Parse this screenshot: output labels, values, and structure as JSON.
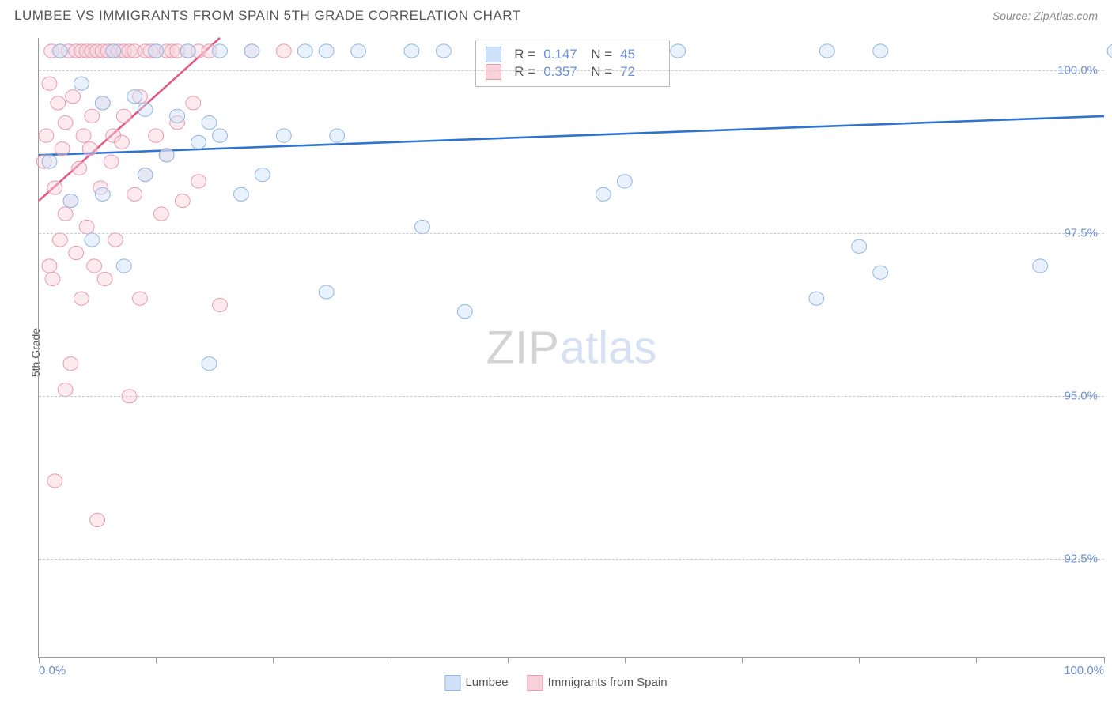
{
  "header": {
    "title": "LUMBEE VS IMMIGRANTS FROM SPAIN 5TH GRADE CORRELATION CHART",
    "source": "Source: ZipAtlas.com"
  },
  "ylabel": "5th Grade",
  "watermark": {
    "left": "ZIP",
    "right": "atlas"
  },
  "chart": {
    "type": "scatter",
    "xlim": [
      0,
      100
    ],
    "ylim": [
      91.0,
      100.5
    ],
    "background_color": "#ffffff",
    "grid_color": "#cccccc",
    "axis_color": "#999999",
    "ytick_step": 2.5,
    "yticks": [
      {
        "v": 92.5,
        "label": "92.5%"
      },
      {
        "v": 95.0,
        "label": "95.0%"
      },
      {
        "v": 97.5,
        "label": "97.5%"
      },
      {
        "v": 100.0,
        "label": "100.0%"
      }
    ],
    "xticks_pct": [
      0,
      11,
      22,
      33,
      44,
      55,
      66,
      77,
      88,
      100
    ],
    "xaxis_labels": [
      {
        "text": "0.0%",
        "pos": 0,
        "align": "left"
      },
      {
        "text": "100.0%",
        "pos": 100,
        "align": "right"
      }
    ],
    "marker_radius": 9,
    "marker_opacity": 0.45,
    "line_width": 2
  },
  "series": [
    {
      "id": "lumbee",
      "label": "Lumbee",
      "fill": "#cfe2f9",
      "stroke": "#8fb6e6",
      "line_color": "#2f73d1",
      "trend": {
        "x1": 0,
        "y1": 98.7,
        "x2": 100,
        "y2": 99.3
      },
      "stats": {
        "R": "0.147",
        "N": "45"
      },
      "points": [
        [
          1,
          98.6
        ],
        [
          2,
          100.3
        ],
        [
          3,
          98.0
        ],
        [
          4,
          99.8
        ],
        [
          5,
          97.4
        ],
        [
          6,
          99.5
        ],
        [
          6,
          98.1
        ],
        [
          7,
          100.3
        ],
        [
          8,
          97.0
        ],
        [
          9,
          99.6
        ],
        [
          10,
          98.4
        ],
        [
          11,
          100.3
        ],
        [
          12,
          98.7
        ],
        [
          13,
          99.3
        ],
        [
          14,
          100.3
        ],
        [
          15,
          98.9
        ],
        [
          16,
          95.5
        ],
        [
          17,
          99.0
        ],
        [
          17,
          100.3
        ],
        [
          19,
          98.1
        ],
        [
          20,
          100.3
        ],
        [
          21,
          98.4
        ],
        [
          23,
          99.0
        ],
        [
          25,
          100.3
        ],
        [
          27,
          96.6
        ],
        [
          28,
          99.0
        ],
        [
          27,
          100.3
        ],
        [
          30,
          100.3
        ],
        [
          36,
          97.6
        ],
        [
          38,
          100.3
        ],
        [
          40,
          96.3
        ],
        [
          42,
          100.3
        ],
        [
          53,
          98.1
        ],
        [
          55,
          98.3
        ],
        [
          60,
          100.3
        ],
        [
          73,
          96.5
        ],
        [
          74,
          100.3
        ],
        [
          77,
          97.3
        ],
        [
          79,
          100.3
        ],
        [
          79,
          96.9
        ],
        [
          94,
          97.0
        ],
        [
          101,
          100.3
        ],
        [
          35,
          100.3
        ],
        [
          16,
          99.2
        ],
        [
          10,
          99.4
        ]
      ]
    },
    {
      "id": "spain",
      "label": "Immigrants from Spain",
      "fill": "#f9d1db",
      "stroke": "#e99ab0",
      "line_color": "#e05a85",
      "trend": {
        "x1": 0,
        "y1": 98.0,
        "x2": 17,
        "y2": 100.5
      },
      "stats": {
        "R": "0.357",
        "N": "72"
      },
      "points": [
        [
          0.5,
          98.6
        ],
        [
          0.7,
          99.0
        ],
        [
          1.0,
          97.0
        ],
        [
          1.0,
          99.8
        ],
        [
          1.2,
          100.3
        ],
        [
          1.3,
          96.8
        ],
        [
          1.5,
          98.2
        ],
        [
          1.5,
          93.7
        ],
        [
          1.8,
          99.5
        ],
        [
          2.0,
          97.4
        ],
        [
          2.0,
          100.3
        ],
        [
          2.2,
          98.8
        ],
        [
          2.5,
          97.8
        ],
        [
          2.5,
          99.2
        ],
        [
          2.8,
          100.3
        ],
        [
          3.0,
          95.5
        ],
        [
          3.0,
          98.0
        ],
        [
          3.2,
          99.6
        ],
        [
          3.5,
          100.3
        ],
        [
          3.5,
          97.2
        ],
        [
          3.8,
          98.5
        ],
        [
          4.0,
          100.3
        ],
        [
          4.0,
          96.5
        ],
        [
          4.2,
          99.0
        ],
        [
          4.5,
          100.3
        ],
        [
          4.5,
          97.6
        ],
        [
          4.8,
          98.8
        ],
        [
          5.0,
          100.3
        ],
        [
          5.0,
          99.3
        ],
        [
          5.2,
          97.0
        ],
        [
          5.5,
          100.3
        ],
        [
          5.8,
          98.2
        ],
        [
          6.0,
          100.3
        ],
        [
          6.0,
          99.5
        ],
        [
          6.2,
          96.8
        ],
        [
          6.5,
          100.3
        ],
        [
          6.8,
          98.6
        ],
        [
          7.0,
          100.3
        ],
        [
          7.0,
          99.0
        ],
        [
          7.2,
          97.4
        ],
        [
          7.5,
          100.3
        ],
        [
          7.8,
          98.9
        ],
        [
          8.0,
          100.3
        ],
        [
          8.0,
          99.3
        ],
        [
          8.5,
          95.0
        ],
        [
          8.5,
          100.3
        ],
        [
          9.0,
          98.1
        ],
        [
          9.0,
          100.3
        ],
        [
          9.5,
          99.6
        ],
        [
          9.5,
          96.5
        ],
        [
          10.0,
          100.3
        ],
        [
          10.0,
          98.4
        ],
        [
          10.5,
          100.3
        ],
        [
          11.0,
          99.0
        ],
        [
          11.0,
          100.3
        ],
        [
          11.5,
          97.8
        ],
        [
          12.0,
          100.3
        ],
        [
          12.0,
          98.7
        ],
        [
          12.5,
          100.3
        ],
        [
          13.0,
          99.2
        ],
        [
          13.0,
          100.3
        ],
        [
          13.5,
          98.0
        ],
        [
          14.0,
          100.3
        ],
        [
          14.5,
          99.5
        ],
        [
          15.0,
          100.3
        ],
        [
          15.0,
          98.3
        ],
        [
          16.0,
          100.3
        ],
        [
          17.0,
          96.4
        ],
        [
          20.0,
          100.3
        ],
        [
          23.0,
          100.3
        ],
        [
          5.5,
          93.1
        ],
        [
          2.5,
          95.1
        ]
      ]
    }
  ],
  "stats_box": {
    "labels": {
      "R": "R  =",
      "N": "N  ="
    }
  },
  "bottom_legend": {
    "items": [
      {
        "series": "lumbee"
      },
      {
        "series": "spain"
      }
    ]
  }
}
